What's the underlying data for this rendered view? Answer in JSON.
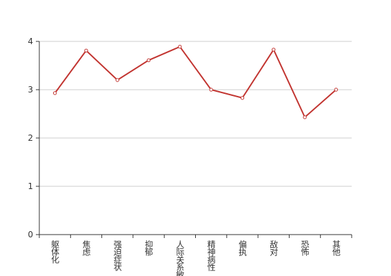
{
  "chart_data": {
    "type": "line",
    "categories": [
      "躯体化",
      "焦虑",
      "强迫症状",
      "抑郁",
      "人际关系敏感",
      "精神病性",
      "偏执",
      "敌对",
      "恐怖",
      "其他"
    ],
    "series": [
      {
        "color": "#c23531",
        "values": [
          2.93,
          3.81,
          3.2,
          3.61,
          3.89,
          3.0,
          2.83,
          3.83,
          2.43,
          3.0
        ]
      }
    ],
    "ylim": [
      0,
      4
    ],
    "yticks": [
      0,
      1,
      2,
      3,
      4
    ],
    "grid": true
  }
}
